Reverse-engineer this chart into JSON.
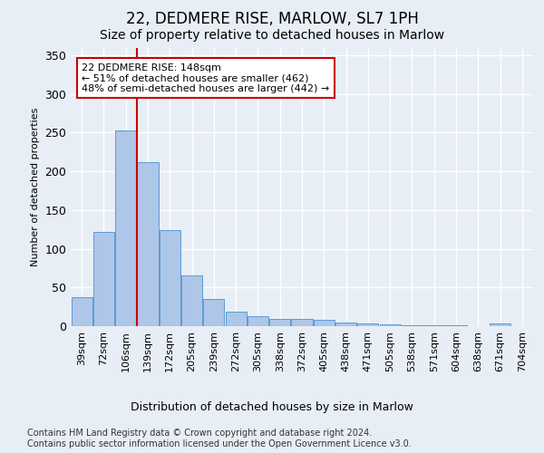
{
  "title": "22, DEDMERE RISE, MARLOW, SL7 1PH",
  "subtitle": "Size of property relative to detached houses in Marlow",
  "xlabel": "Distribution of detached houses by size in Marlow",
  "ylabel": "Number of detached properties",
  "categories": [
    "39sqm",
    "72sqm",
    "106sqm",
    "139sqm",
    "172sqm",
    "205sqm",
    "239sqm",
    "272sqm",
    "305sqm",
    "338sqm",
    "372sqm",
    "405sqm",
    "438sqm",
    "471sqm",
    "505sqm",
    "538sqm",
    "571sqm",
    "604sqm",
    "638sqm",
    "671sqm",
    "704sqm"
  ],
  "values": [
    37,
    122,
    253,
    212,
    124,
    65,
    35,
    19,
    13,
    9,
    9,
    8,
    5,
    3,
    2,
    1,
    1,
    1,
    0,
    4,
    0
  ],
  "bar_color": "#aec6e8",
  "bar_edge_color": "#5b9bd5",
  "red_line_color": "#cc0000",
  "annotation_text": "22 DEDMERE RISE: 148sqm\n← 51% of detached houses are smaller (462)\n48% of semi-detached houses are larger (442) →",
  "annotation_box_color": "#ffffff",
  "annotation_box_edge_color": "#cc0000",
  "property_bar_index": 3,
  "ylim": [
    0,
    360
  ],
  "yticks": [
    0,
    50,
    100,
    150,
    200,
    250,
    300,
    350
  ],
  "footer": "Contains HM Land Registry data © Crown copyright and database right 2024.\nContains public sector information licensed under the Open Government Licence v3.0.",
  "bg_color": "#e8eef5",
  "plot_bg_color": "#e8eef5",
  "grid_color": "#ffffff",
  "title_fontsize": 12,
  "subtitle_fontsize": 10,
  "tick_fontsize": 8,
  "ylabel_fontsize": 8,
  "xlabel_fontsize": 9,
  "footer_fontsize": 7,
  "ann_fontsize": 8
}
